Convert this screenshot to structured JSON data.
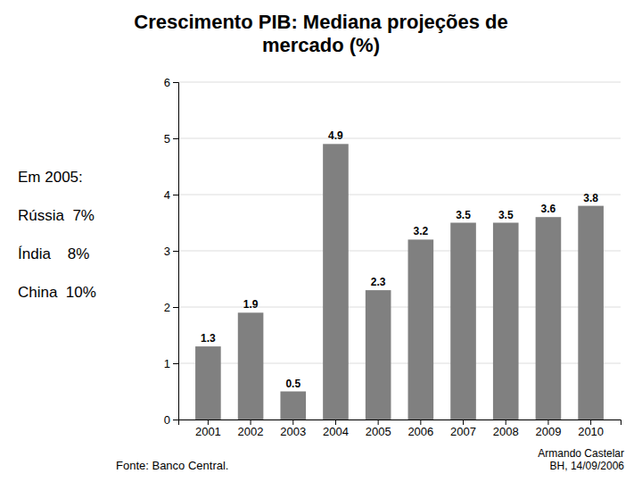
{
  "chart_data": {
    "type": "bar",
    "title": "Crescimento PIB: Mediana projeções de\nmercado (%)",
    "categories": [
      "2001",
      "2002",
      "2003",
      "2004",
      "2005",
      "2006",
      "2007",
      "2008",
      "2009",
      "2010"
    ],
    "values": [
      1.3,
      1.9,
      0.5,
      4.9,
      2.3,
      3.2,
      3.5,
      3.5,
      3.6,
      3.8
    ],
    "color": "#808080",
    "ylim": [
      0,
      6
    ],
    "yticks": [
      0,
      1,
      2,
      3,
      4,
      5,
      6
    ],
    "grid": true,
    "data_labels": true,
    "annotations": [
      "Em 2005:",
      "Rússia  7%",
      "Índia    8%",
      "China  10%"
    ],
    "source": "Fonte: Banco Central.",
    "credit": "Armando Castelar\nBH, 14/09/2006"
  }
}
